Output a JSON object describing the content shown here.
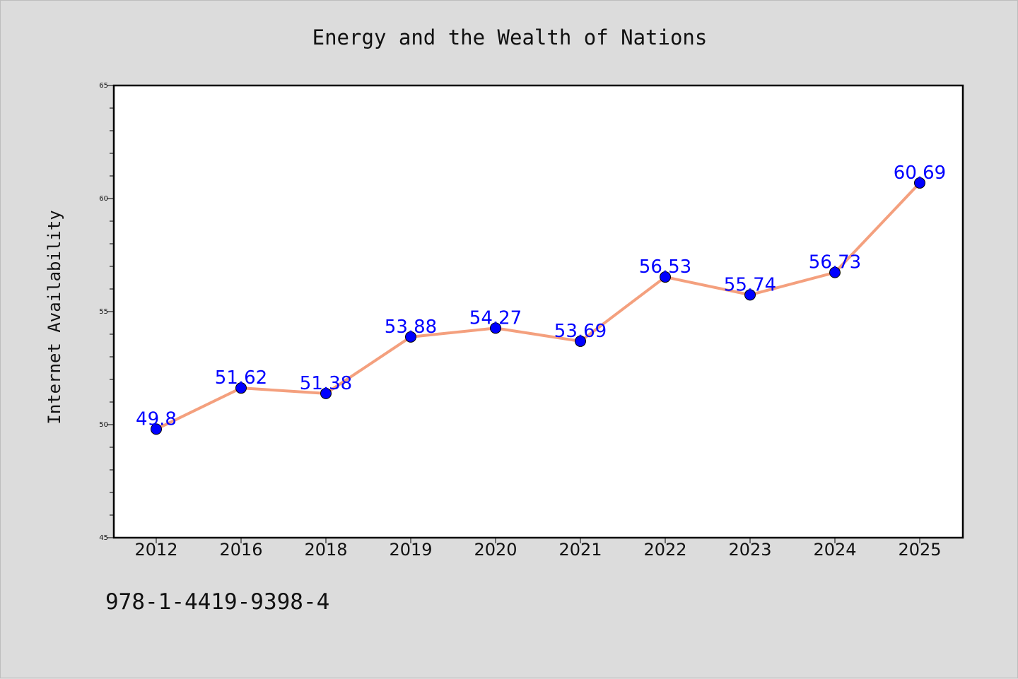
{
  "chart_data": {
    "type": "line",
    "title": "Energy and the Wealth of Nations",
    "xlabel": "",
    "ylabel": "Internet Availability",
    "categories": [
      "2012",
      "2016",
      "2018",
      "2019",
      "2020",
      "2021",
      "2022",
      "2023",
      "2024",
      "2025"
    ],
    "values": [
      49.8,
      51.62,
      51.38,
      53.88,
      54.27,
      53.69,
      56.53,
      55.74,
      56.73,
      60.69
    ],
    "data_labels": [
      "49.8",
      "51.62",
      "51.38",
      "53.88",
      "54.27",
      "53.69",
      "56.53",
      "55.74",
      "56.73",
      "60.69"
    ],
    "ylim": [
      45,
      65
    ],
    "yticks": [
      45,
      50,
      55,
      60,
      65
    ],
    "grid": false,
    "legend": "none"
  },
  "footer": {
    "isbn": "978-1-4419-9398-4"
  },
  "colors": {
    "line": "#f4a07e",
    "marker": "#0000ff",
    "data_label": "#0000ff",
    "background": "#dcdcdc",
    "plot_background": "#ffffff"
  }
}
